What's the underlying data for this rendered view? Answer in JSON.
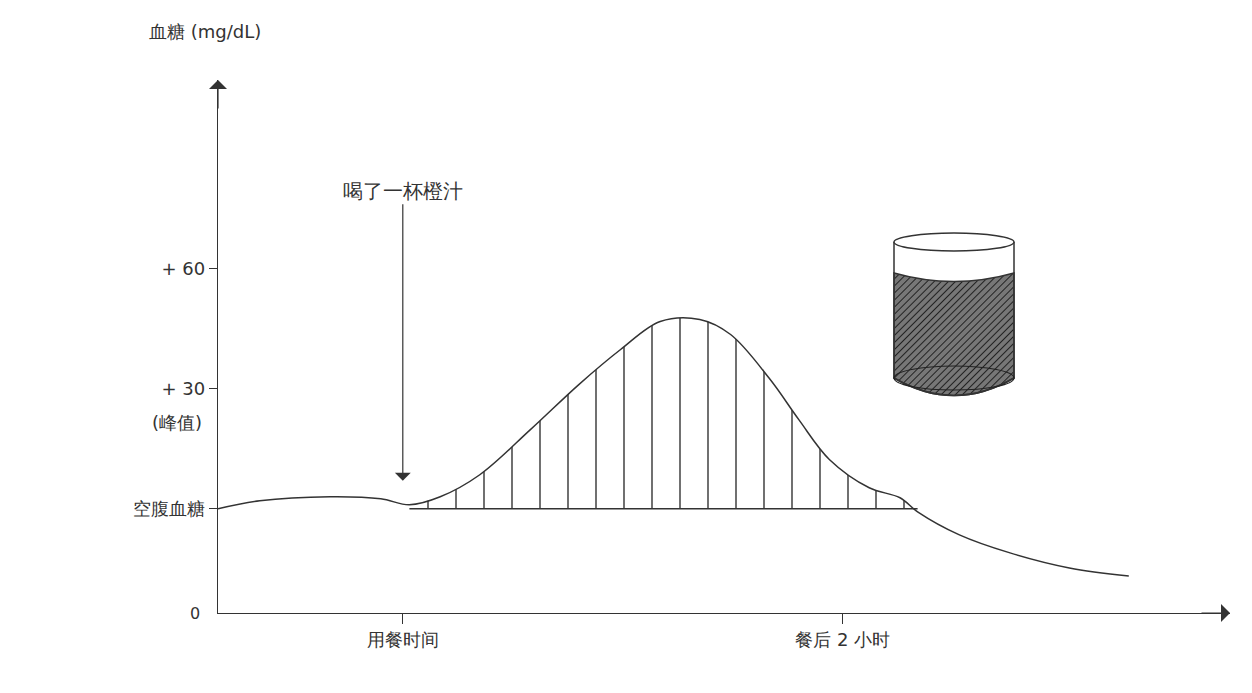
{
  "chart_data": {
    "type": "line",
    "y_label": "血糖 (mg/dL)",
    "x": [
      -0.84,
      -0.65,
      -0.33,
      -0.1,
      0.03,
      0.17,
      0.35,
      0.58,
      0.8,
      0.99,
      1.17,
      1.35,
      1.49,
      1.67,
      1.8,
      1.94,
      2.12,
      2.26,
      2.34,
      2.53,
      2.76,
      3.03,
      3.3
    ],
    "values": [
      0,
      2,
      3,
      2.5,
      1,
      3,
      8.5,
      19.75,
      31,
      39.75,
      46.75,
      47.25,
      43.5,
      32.25,
      22.25,
      12.25,
      5.25,
      2.75,
      -0.75,
      -6.5,
      -11,
      -14.75,
      -16.75
    ],
    "xlim": [
      -0.84,
      3.76
    ],
    "ylim": [
      -26,
      107
    ],
    "xticks": [
      {
        "value": 0,
        "label": "用餐时间"
      },
      {
        "value": 2,
        "label": "餐后 2 小时"
      }
    ],
    "yticks": [
      {
        "value": 0,
        "label": "空腹血糖"
      },
      {
        "value": 30,
        "label": "+ 30"
      },
      {
        "value": 60,
        "label": "+ 60"
      }
    ],
    "peak_note": "(峰值)",
    "origin_label": "0",
    "annotation": {
      "text": "喝了一杯橙汁",
      "x": 0,
      "y": 7
    },
    "shaded_x": [
      0.03,
      2.34
    ],
    "color": "#333333",
    "grid": false
  }
}
